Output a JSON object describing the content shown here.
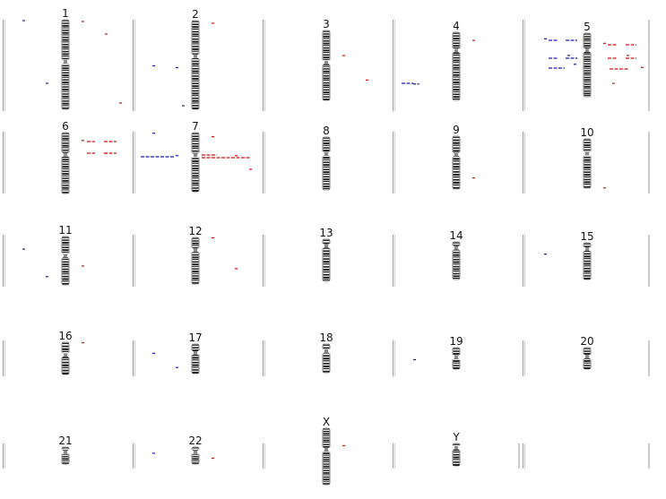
{
  "colors": {
    "loss": "#1a1aa8",
    "gain": "#cc1111",
    "band_dark": "#1a1a1a",
    "band_light": "#f4f4f4",
    "centromere": "#8a8a8a",
    "divider": "#9a9a9a"
  },
  "chromosomes": [
    {
      "label": "1",
      "bands": 38,
      "p_frac": 0.47,
      "loss": [
        {
          "start": 0.0,
          "end": 0.02
        },
        {
          "start": 0.7,
          "end": 0.72
        }
      ],
      "gain": [
        {
          "start": 0.01,
          "end": 0.03
        },
        {
          "start": 0.15,
          "end": 0.17
        },
        {
          "start": 0.92,
          "end": 0.94
        }
      ]
    },
    {
      "label": "2",
      "bands": 36,
      "p_frac": 0.4,
      "loss": [
        {
          "start": 0.5,
          "end": 0.52
        },
        {
          "start": 0.52,
          "end": 0.54
        },
        {
          "start": 0.95,
          "end": 0.97
        }
      ],
      "gain": [
        {
          "start": 0.02,
          "end": 0.04
        }
      ]
    },
    {
      "label": "3",
      "bands": 30,
      "p_frac": 0.46,
      "loss": [],
      "gain": [
        {
          "start": 0.35,
          "end": 0.37
        },
        {
          "start": 0.7,
          "end": 0.72
        }
      ]
    },
    {
      "label": "4",
      "bands": 28,
      "p_frac": 0.27,
      "loss": [
        {
          "start": 0.74,
          "end": 0.78
        }
      ],
      "gain": [
        {
          "start": 0.11,
          "end": 0.13
        }
      ]
    },
    {
      "label": "5",
      "bands": 28,
      "p_frac": 0.27,
      "loss": [
        {
          "start": 0.08,
          "end": 0.1
        },
        {
          "start": 0.34,
          "end": 0.36
        },
        {
          "start": 0.48,
          "end": 0.5
        }
      ],
      "gain": [
        {
          "start": 0.15,
          "end": 0.17
        },
        {
          "start": 0.34,
          "end": 0.36
        },
        {
          "start": 0.53,
          "end": 0.55
        },
        {
          "start": 0.78,
          "end": 0.8
        }
      ]
    },
    {
      "label": "6",
      "bands": 26,
      "p_frac": 0.36,
      "loss": [],
      "gain": [
        {
          "start": 0.12,
          "end": 0.14
        },
        {
          "start": 0.33,
          "end": 0.35
        }
      ]
    },
    {
      "label": "7",
      "bands": 24,
      "p_frac": 0.38,
      "loss": [
        {
          "start": 0.0,
          "end": 0.02
        },
        {
          "start": 0.38,
          "end": 0.4
        }
      ],
      "gain": [
        {
          "start": 0.06,
          "end": 0.08
        },
        {
          "start": 0.38,
          "end": 0.4
        },
        {
          "start": 0.61,
          "end": 0.63
        }
      ]
    },
    {
      "label": "8",
      "bands": 22,
      "p_frac": 0.32,
      "loss": [],
      "gain": []
    },
    {
      "label": "9",
      "bands": 20,
      "p_frac": 0.35,
      "loss": [],
      "gain": [
        {
          "start": 0.78,
          "end": 0.8
        }
      ]
    },
    {
      "label": "10",
      "bands": 20,
      "p_frac": 0.3,
      "loss": [],
      "gain": [
        {
          "start": 0.99,
          "end": 1.0
        }
      ]
    },
    {
      "label": "11",
      "bands": 20,
      "p_frac": 0.4,
      "loss": [
        {
          "start": 0.25,
          "end": 0.27
        },
        {
          "start": 0.82,
          "end": 0.84
        }
      ],
      "gain": [
        {
          "start": 0.6,
          "end": 0.62
        }
      ]
    },
    {
      "label": "12",
      "bands": 20,
      "p_frac": 0.27,
      "loss": [],
      "gain": [
        {
          "start": 0.0,
          "end": 0.02
        },
        {
          "start": 0.66,
          "end": 0.68
        }
      ]
    },
    {
      "label": "13",
      "bands": 16,
      "p_frac": 0.16,
      "loss": [],
      "gain": []
    },
    {
      "label": "14",
      "bands": 16,
      "p_frac": 0.16,
      "loss": [],
      "gain": []
    },
    {
      "label": "15",
      "bands": 15,
      "p_frac": 0.17,
      "loss": [
        {
          "start": 0.3,
          "end": 0.32
        }
      ],
      "gain": []
    },
    {
      "label": "16",
      "bands": 12,
      "p_frac": 0.4,
      "loss": [],
      "gain": [
        {
          "start": 0.0,
          "end": 0.03
        }
      ]
    },
    {
      "label": "17",
      "bands": 12,
      "p_frac": 0.3,
      "loss": [
        {
          "start": 0.3,
          "end": 0.33
        },
        {
          "start": 0.78,
          "end": 0.81
        }
      ],
      "gain": []
    },
    {
      "label": "18",
      "bands": 11,
      "p_frac": 0.25,
      "loss": [],
      "gain": []
    },
    {
      "label": "19",
      "bands": 9,
      "p_frac": 0.45,
      "loss": [
        {
          "start": 0.55,
          "end": 0.58
        }
      ],
      "gain": []
    },
    {
      "label": "20",
      "bands": 9,
      "p_frac": 0.42,
      "loss": [],
      "gain": []
    },
    {
      "label": "21",
      "bands": 8,
      "p_frac": 0.28,
      "loss": [],
      "gain": []
    },
    {
      "label": "22",
      "bands": 8,
      "p_frac": 0.28,
      "loss": [
        {
          "start": 0.35,
          "end": 0.38
        }
      ],
      "gain": [
        {
          "start": 0.64,
          "end": 0.67
        }
      ]
    },
    {
      "label": "X",
      "bands": 26,
      "p_frac": 0.38,
      "loss": [],
      "gain": [
        {
          "start": 0.3,
          "end": 0.32
        }
      ]
    },
    {
      "label": "Y",
      "bands": 9,
      "p_frac": 0.2,
      "loss": [],
      "gain": []
    }
  ]
}
